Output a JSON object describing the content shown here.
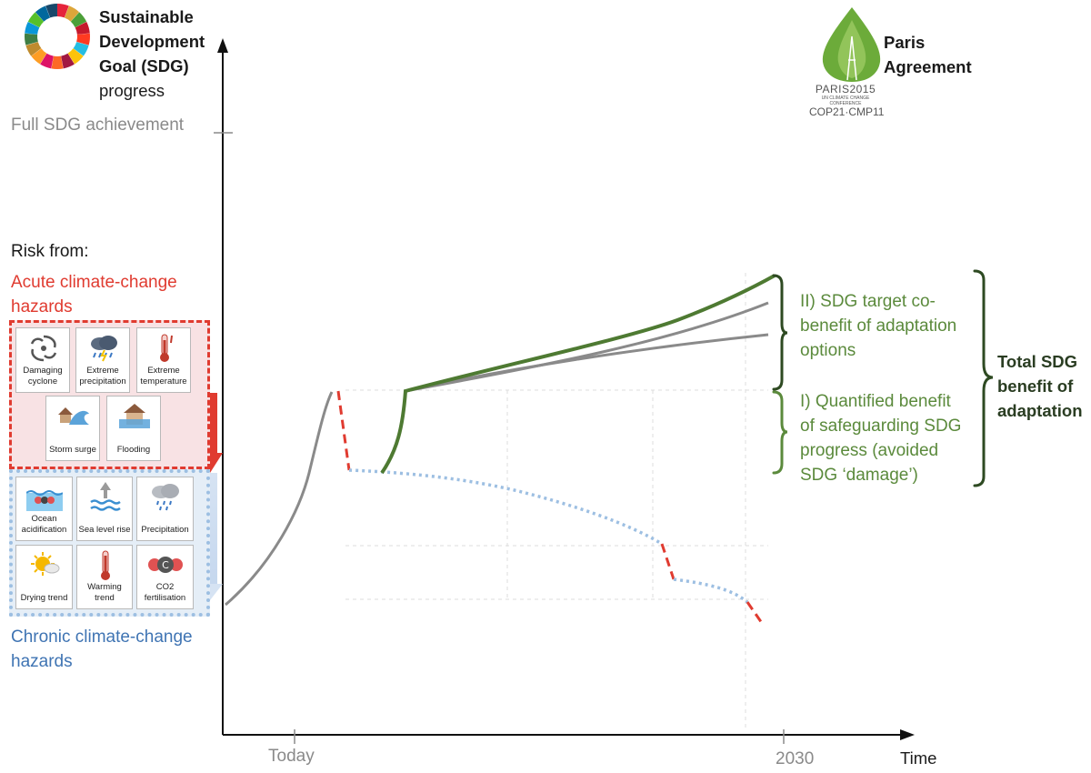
{
  "y_axis_title": {
    "line1": "Sustainable",
    "line2": "Development",
    "line3": "Goal (SDG)",
    "line4": "progress"
  },
  "full_sdg_label": "Full SDG achievement",
  "risk": {
    "heading": "Risk from:",
    "acute_label": "Acute climate-change hazards",
    "chronic_label": "Chronic climate-change hazards",
    "acute_color": "#e03b30",
    "chronic_color": "#3f74b3",
    "acute_hazards": [
      {
        "label": "Damaging cyclone",
        "icon": "cyclone-icon"
      },
      {
        "label": "Extreme precipitation",
        "icon": "storm-cloud-icon"
      },
      {
        "label": "Extreme temperature",
        "icon": "thermometer-icon"
      },
      {
        "label": "Storm surge",
        "icon": "storm-surge-icon"
      },
      {
        "label": "Flooding",
        "icon": "flooded-house-icon"
      }
    ],
    "chronic_hazards": [
      {
        "label": "Ocean acidification",
        "icon": "ocean-acidification-icon"
      },
      {
        "label": "Sea level rise",
        "icon": "sea-level-rise-icon"
      },
      {
        "label": "Precipitation",
        "icon": "rain-cloud-icon"
      },
      {
        "label": "Drying trend",
        "icon": "sun-icon"
      },
      {
        "label": "Warming trend",
        "icon": "thermometer-icon"
      },
      {
        "label": "CO2 fertilisation",
        "icon": "co2-molecule-icon"
      }
    ]
  },
  "paris": {
    "label": "Paris Agreement",
    "logo_line1": "PARIS2015",
    "logo_line2": "UN CLIMATE CHANGE CONFERENCE",
    "logo_line3": "COP21·CMP11"
  },
  "annotations": {
    "benefit_2": "II) SDG target co-benefit of adaptation options",
    "benefit_1": "I) Quantified benefit of safeguarding SDG progress (avoided SDG ‘damage’)",
    "total": "Total SDG benefit of adaptation"
  },
  "x_axis": {
    "title": "Time",
    "tick_today": "Today",
    "tick_2030": "2030"
  },
  "colors": {
    "baseline": "#8a8a8a",
    "adaptation": "#4e7a32",
    "acute_drop": "#e03b30",
    "chronic_decline": "#9dbfe2",
    "annotation_text": "#5b8a3c"
  }
}
